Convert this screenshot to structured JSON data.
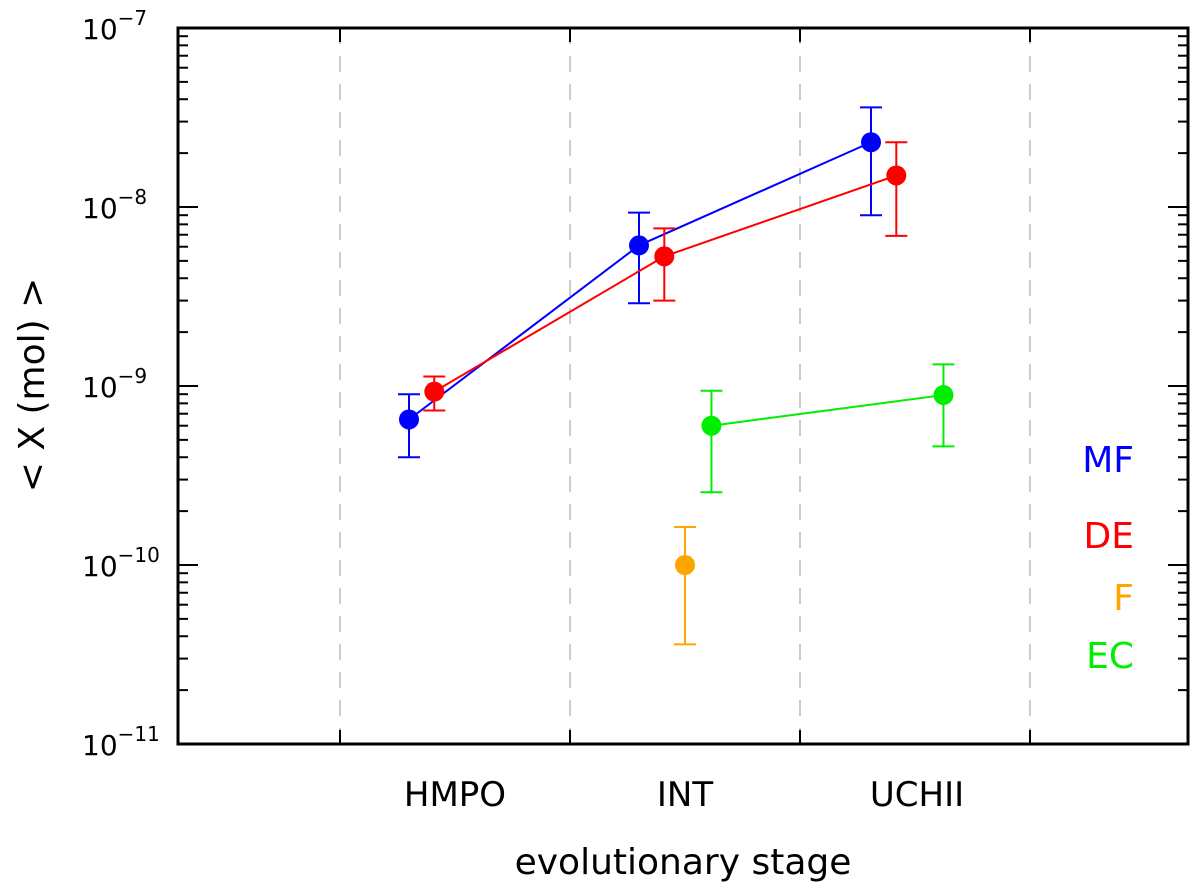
{
  "chart_data": {
    "type": "scatter",
    "title": "",
    "xlabel": "evolutionary stage",
    "ylabel": "< X (mol) >",
    "yscale": "log",
    "ylim": [
      1e-11,
      1e-07
    ],
    "categories": [
      "HMPO",
      "INT",
      "UCHII"
    ],
    "y_ticks": [
      {
        "mantissa": "10",
        "exp": "−11"
      },
      {
        "mantissa": "10",
        "exp": "−10"
      },
      {
        "mantissa": "10",
        "exp": "−9"
      },
      {
        "mantissa": "10",
        "exp": "−8"
      },
      {
        "mantissa": "10",
        "exp": "−7"
      }
    ],
    "series": [
      {
        "name": "MF",
        "color": "#0000ff",
        "connected": true,
        "points": [
          {
            "category": "HMPO",
            "offset": -0.4,
            "y": 6.5e-10,
            "ylow": 4e-10,
            "yhigh": 9e-10
          },
          {
            "category": "INT",
            "offset": -0.4,
            "y": 6.1e-09,
            "ylow": 2.9e-09,
            "yhigh": 9.3e-09
          },
          {
            "category": "UCHII",
            "offset": -0.4,
            "y": 2.3e-08,
            "ylow": 9e-09,
            "yhigh": 3.6e-08
          }
        ]
      },
      {
        "name": "DE",
        "color": "#ff0000",
        "connected": true,
        "points": [
          {
            "category": "HMPO",
            "offset": -0.18,
            "y": 9.3e-10,
            "ylow": 7.3e-10,
            "yhigh": 1.13e-09
          },
          {
            "category": "INT",
            "offset": -0.18,
            "y": 5.3e-09,
            "ylow": 3e-09,
            "yhigh": 7.6e-09
          },
          {
            "category": "UCHII",
            "offset": -0.18,
            "y": 1.5e-08,
            "ylow": 6.9e-09,
            "yhigh": 2.3e-08
          }
        ]
      },
      {
        "name": "F",
        "color": "#ffa500",
        "connected": false,
        "points": [
          {
            "category": "INT",
            "offset": 0.0,
            "y": 1e-10,
            "ylow": 3.6e-11,
            "yhigh": 1.63e-10
          }
        ]
      },
      {
        "name": "EC",
        "color": "#00ee00",
        "connected": true,
        "points": [
          {
            "category": "INT",
            "offset": 0.23,
            "y": 6e-10,
            "ylow": 2.55e-10,
            "yhigh": 9.4e-10
          },
          {
            "category": "UCHII",
            "offset": 0.23,
            "y": 8.9e-10,
            "ylow": 4.6e-10,
            "yhigh": 1.32e-09
          }
        ]
      }
    ],
    "legend": {
      "position": "right",
      "entries": [
        "MF",
        "DE",
        "F",
        "EC"
      ]
    },
    "grid": "vertical dashed separators between stages"
  }
}
